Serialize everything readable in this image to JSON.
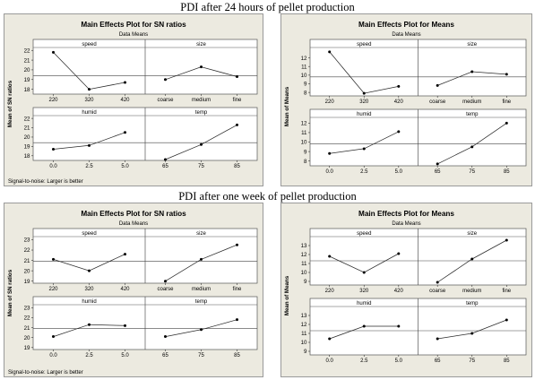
{
  "titles": {
    "section1": "PDI after 24 hours of pellet production",
    "section2": "PDI after one week of pellet production"
  },
  "chart_data": [
    {
      "type": "line",
      "title": "Main Effects Plot for SN ratios",
      "subtitle": "Data Means",
      "ylabel": "Mean of SN ratios",
      "footnote": "Signal-to-noise: Larger is better",
      "panels": [
        {
          "name": "speed",
          "categories": [
            "220",
            "320",
            "420"
          ],
          "values": [
            21.8,
            18.0,
            18.7
          ]
        },
        {
          "name": "size",
          "categories": [
            "coarse",
            "medium",
            "fine"
          ],
          "values": [
            19.0,
            20.3,
            19.3
          ]
        },
        {
          "name": "humid",
          "categories": [
            "0.0",
            "2.5",
            "5.0"
          ],
          "values": [
            18.7,
            19.1,
            20.5
          ]
        },
        {
          "name": "temp",
          "categories": [
            "65",
            "75",
            "85"
          ],
          "values": [
            17.6,
            19.2,
            21.3
          ]
        }
      ],
      "top_ticks": [
        18,
        19,
        20,
        21,
        22
      ],
      "top_ylim": [
        17.5,
        22.3
      ],
      "bottom_ticks": [
        18,
        19,
        20,
        21,
        22
      ],
      "bottom_ylim": [
        17.5,
        22.3
      ],
      "mean": 19.4
    },
    {
      "type": "line",
      "title": "Main Effects Plot for Means",
      "subtitle": "Data Means",
      "ylabel": "Mean of Means",
      "footnote": "",
      "panels": [
        {
          "name": "speed",
          "categories": [
            "220",
            "320",
            "420"
          ],
          "values": [
            12.7,
            7.9,
            8.7
          ]
        },
        {
          "name": "size",
          "categories": [
            "coarse",
            "medium",
            "fine"
          ],
          "values": [
            8.8,
            10.4,
            10.1
          ]
        },
        {
          "name": "humid",
          "categories": [
            "0.0",
            "2.5",
            "5.0"
          ],
          "values": [
            8.8,
            9.3,
            11.1
          ]
        },
        {
          "name": "temp",
          "categories": [
            "65",
            "75",
            "85"
          ],
          "values": [
            7.7,
            9.5,
            12.0
          ]
        }
      ],
      "top_ticks": [
        8,
        9,
        10,
        11,
        12
      ],
      "top_ylim": [
        7.6,
        13.2
      ],
      "bottom_ticks": [
        8,
        9,
        10,
        11,
        12
      ],
      "bottom_ylim": [
        7.5,
        12.6
      ],
      "mean": 9.8
    },
    {
      "type": "line",
      "title": "Main Effects Plot for SN ratios",
      "subtitle": "Data Means",
      "ylabel": "Mean of SN ratios",
      "footnote": "Signal-to-noise: Larger is better",
      "panels": [
        {
          "name": "speed",
          "categories": [
            "220",
            "320",
            "420"
          ],
          "values": [
            21.1,
            20.0,
            21.6
          ]
        },
        {
          "name": "size",
          "categories": [
            "coarse",
            "medium",
            "fine"
          ],
          "values": [
            19.0,
            21.1,
            22.5
          ]
        },
        {
          "name": "humid",
          "categories": [
            "0.0",
            "2.5",
            "5.0"
          ],
          "values": [
            20.1,
            21.3,
            21.2
          ]
        },
        {
          "name": "temp",
          "categories": [
            "65",
            "75",
            "85"
          ],
          "values": [
            20.1,
            20.8,
            21.8
          ]
        }
      ],
      "top_ticks": [
        19,
        20,
        21,
        22,
        23
      ],
      "top_ylim": [
        18.8,
        23.3
      ],
      "bottom_ticks": [
        19,
        20,
        21,
        22,
        23
      ],
      "bottom_ylim": [
        18.8,
        23.3
      ],
      "mean": 20.9
    },
    {
      "type": "line",
      "title": "Main Effects Plot for Means",
      "subtitle": "Data Means",
      "ylabel": "Mean of Means",
      "footnote": "",
      "panels": [
        {
          "name": "speed",
          "categories": [
            "220",
            "320",
            "420"
          ],
          "values": [
            11.8,
            10.0,
            12.1
          ]
        },
        {
          "name": "size",
          "categories": [
            "coarse",
            "medium",
            "fine"
          ],
          "values": [
            8.9,
            11.5,
            13.6
          ]
        },
        {
          "name": "humid",
          "categories": [
            "0.0",
            "2.5",
            "5.0"
          ],
          "values": [
            10.4,
            11.8,
            11.8
          ]
        },
        {
          "name": "temp",
          "categories": [
            "65",
            "75",
            "85"
          ],
          "values": [
            10.4,
            11.0,
            12.5
          ]
        }
      ],
      "top_ticks": [
        9,
        10,
        11,
        12,
        13
      ],
      "top_ylim": [
        8.6,
        14.0
      ],
      "bottom_ticks": [
        9,
        10,
        11,
        12,
        13
      ],
      "bottom_ylim": [
        8.6,
        14.0
      ],
      "mean": 11.3
    }
  ]
}
